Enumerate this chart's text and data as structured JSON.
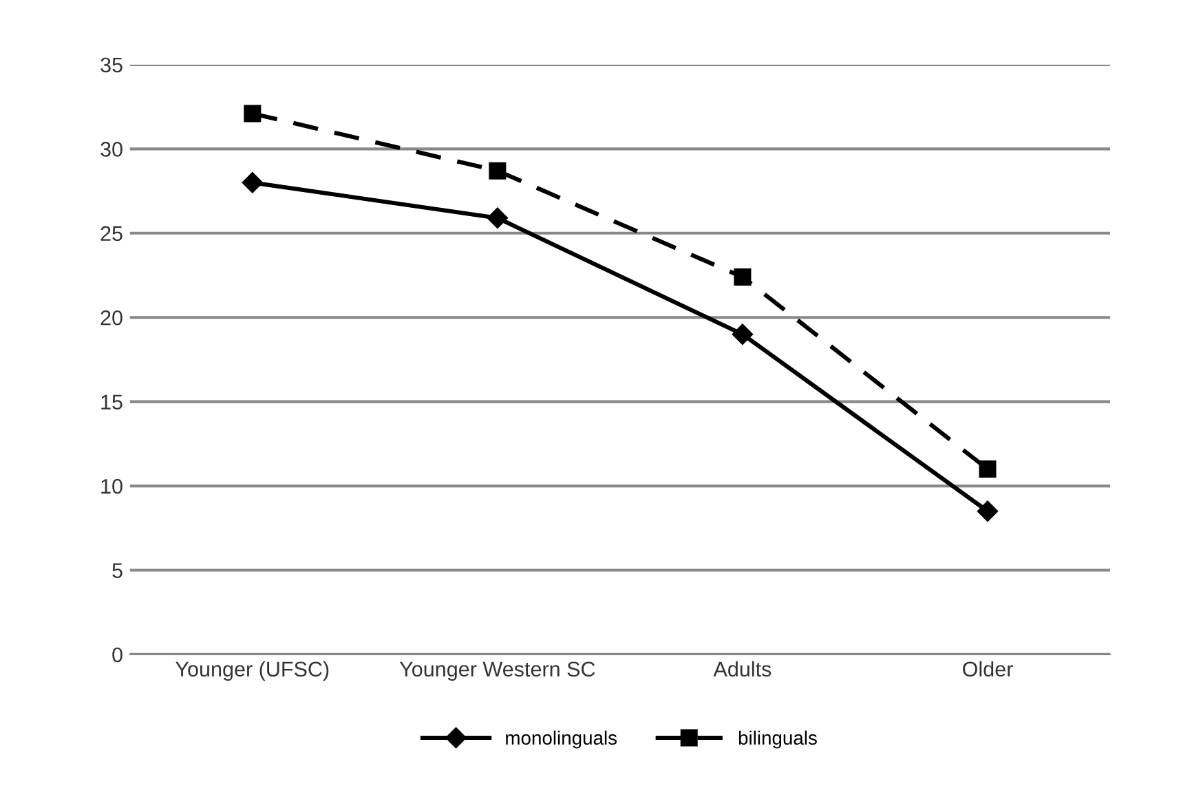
{
  "chart_data": {
    "type": "line",
    "categories": [
      "Younger (UFSC)",
      "Younger Western SC",
      "Adults",
      "Older"
    ],
    "series": [
      {
        "name": "monolinguals",
        "color": "#000000",
        "marker": "diamond",
        "line_style": "solid",
        "values": [
          28.0,
          25.9,
          19.0,
          8.5
        ]
      },
      {
        "name": "bilinguals",
        "color": "#000000",
        "marker": "square",
        "line_style": "dashed",
        "values": [
          32.1,
          28.7,
          22.4,
          11.0
        ]
      }
    ],
    "ylim": [
      0,
      35
    ],
    "yticks": [
      0,
      5,
      10,
      15,
      20,
      25,
      30,
      35
    ],
    "grid": "y",
    "legend": "bottom"
  }
}
